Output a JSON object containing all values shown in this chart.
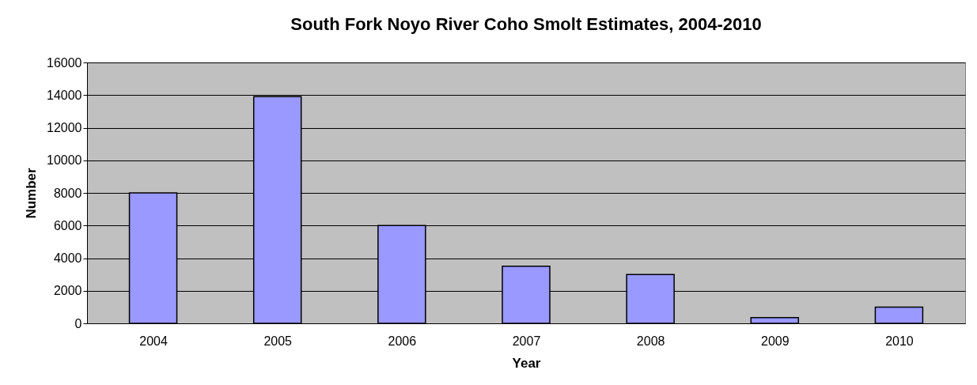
{
  "chart_data": {
    "type": "bar",
    "title": "South Fork Noyo River Coho Smolt Estimates, 2004-2010",
    "xlabel": "Year",
    "ylabel": "Number",
    "categories": [
      "2004",
      "2005",
      "2006",
      "2007",
      "2008",
      "2009",
      "2010"
    ],
    "values": [
      8000,
      13900,
      6000,
      3500,
      3000,
      350,
      1000
    ],
    "color": "#9999ff",
    "ylim": [
      0,
      16000
    ],
    "yticks": [
      0,
      2000,
      4000,
      6000,
      8000,
      10000,
      12000,
      14000,
      16000
    ],
    "grid": "y",
    "legend": false
  }
}
